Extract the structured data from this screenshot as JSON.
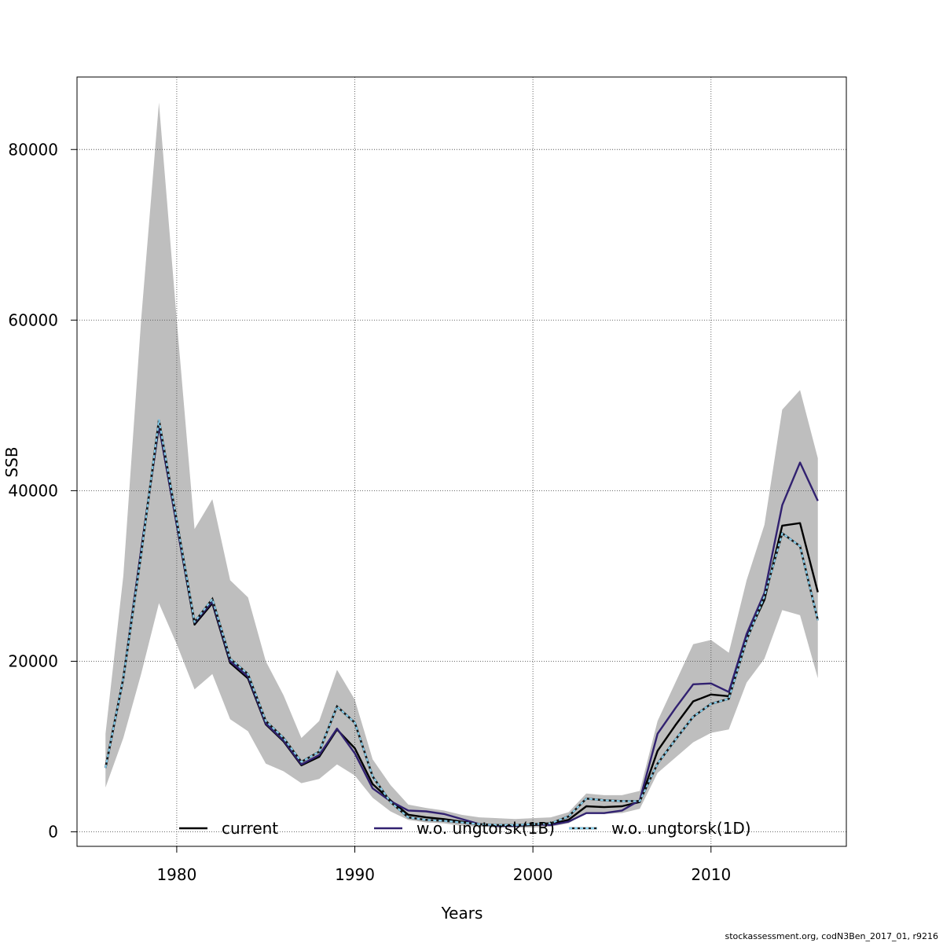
{
  "chart_data": {
    "type": "line",
    "title": "",
    "xlabel": "Years",
    "ylabel": "SSB",
    "xlim": [
      1974.4,
      2017.6
    ],
    "ylim": [
      -1700,
      88500
    ],
    "x_ticks": [
      1980,
      1990,
      2000,
      2010
    ],
    "y_ticks": [
      0,
      20000,
      40000,
      60000,
      80000
    ],
    "grid": true,
    "legend_position": "bottom",
    "x": [
      1976,
      1977,
      1978,
      1979,
      1980,
      1981,
      1982,
      1983,
      1984,
      1985,
      1986,
      1987,
      1988,
      1989,
      1990,
      1991,
      1992,
      1993,
      1994,
      1995,
      1996,
      1997,
      1998,
      1999,
      2000,
      2001,
      2002,
      2003,
      2004,
      2005,
      2006,
      2007,
      2008,
      2009,
      2010,
      2011,
      2012,
      2013,
      2014,
      2015,
      2016
    ],
    "band": {
      "color": "#bebebe",
      "upper": [
        11500,
        30000,
        60000,
        85500,
        60000,
        35500,
        39000,
        29500,
        27500,
        20000,
        16000,
        11000,
        13000,
        19000,
        15500,
        8500,
        5500,
        3200,
        2800,
        2500,
        2000,
        1700,
        1600,
        1500,
        1600,
        1700,
        2300,
        4500,
        4300,
        4300,
        4800,
        13000,
        17500,
        22000,
        22500,
        21000,
        29500,
        36000,
        49500,
        51800,
        43800
      ],
      "lower": [
        5200,
        11000,
        18500,
        26800,
        22000,
        16700,
        18500,
        13200,
        11800,
        8000,
        7100,
        5700,
        6200,
        7900,
        6600,
        4000,
        2400,
        1400,
        1100,
        1000,
        700,
        600,
        500,
        500,
        500,
        600,
        1000,
        2200,
        2100,
        2200,
        2700,
        6900,
        8700,
        10500,
        11600,
        12000,
        17500,
        20300,
        26000,
        25400,
        18000
      ]
    },
    "series": [
      {
        "name": "current",
        "color": "#000000",
        "dash": "",
        "values": [
          7500,
          18000,
          33000,
          47600,
          36000,
          24300,
          26800,
          19800,
          18000,
          12600,
          10600,
          7800,
          8800,
          12000,
          9800,
          5600,
          3700,
          2000,
          1700,
          1500,
          1200,
          900,
          700,
          700,
          800,
          900,
          1400,
          3000,
          2900,
          3000,
          3500,
          9500,
          12500,
          15300,
          16100,
          15900,
          22800,
          27200,
          35900,
          36200,
          28100
        ]
      },
      {
        "name": "w.o. ungtorsk(1B)",
        "color": "#312170",
        "dash": "",
        "values": [
          7500,
          18000,
          33000,
          47700,
          36000,
          24500,
          27000,
          20000,
          18200,
          12700,
          10700,
          7900,
          9000,
          12100,
          9200,
          5100,
          3600,
          2500,
          2400,
          2100,
          1500,
          900,
          700,
          700,
          900,
          800,
          1200,
          2200,
          2200,
          2500,
          3700,
          11500,
          14500,
          17300,
          17400,
          16400,
          23200,
          28000,
          38300,
          43300,
          38800
        ]
      },
      {
        "name": "w.o. ungtorsk(1D)",
        "color": "#87ceeb",
        "dash": "4 3",
        "values": [
          7500,
          18000,
          32500,
          48300,
          36500,
          24600,
          27300,
          20300,
          18500,
          13000,
          11000,
          8200,
          9400,
          14700,
          12800,
          6500,
          3500,
          1700,
          1400,
          1300,
          1100,
          900,
          800,
          800,
          900,
          1000,
          1800,
          3900,
          3700,
          3600,
          3600,
          8000,
          10800,
          13500,
          15000,
          15600,
          22500,
          27600,
          35000,
          33500,
          24800
        ]
      }
    ]
  },
  "footer": "stockassessment.org, codN3Ben_2017_01, r9216"
}
